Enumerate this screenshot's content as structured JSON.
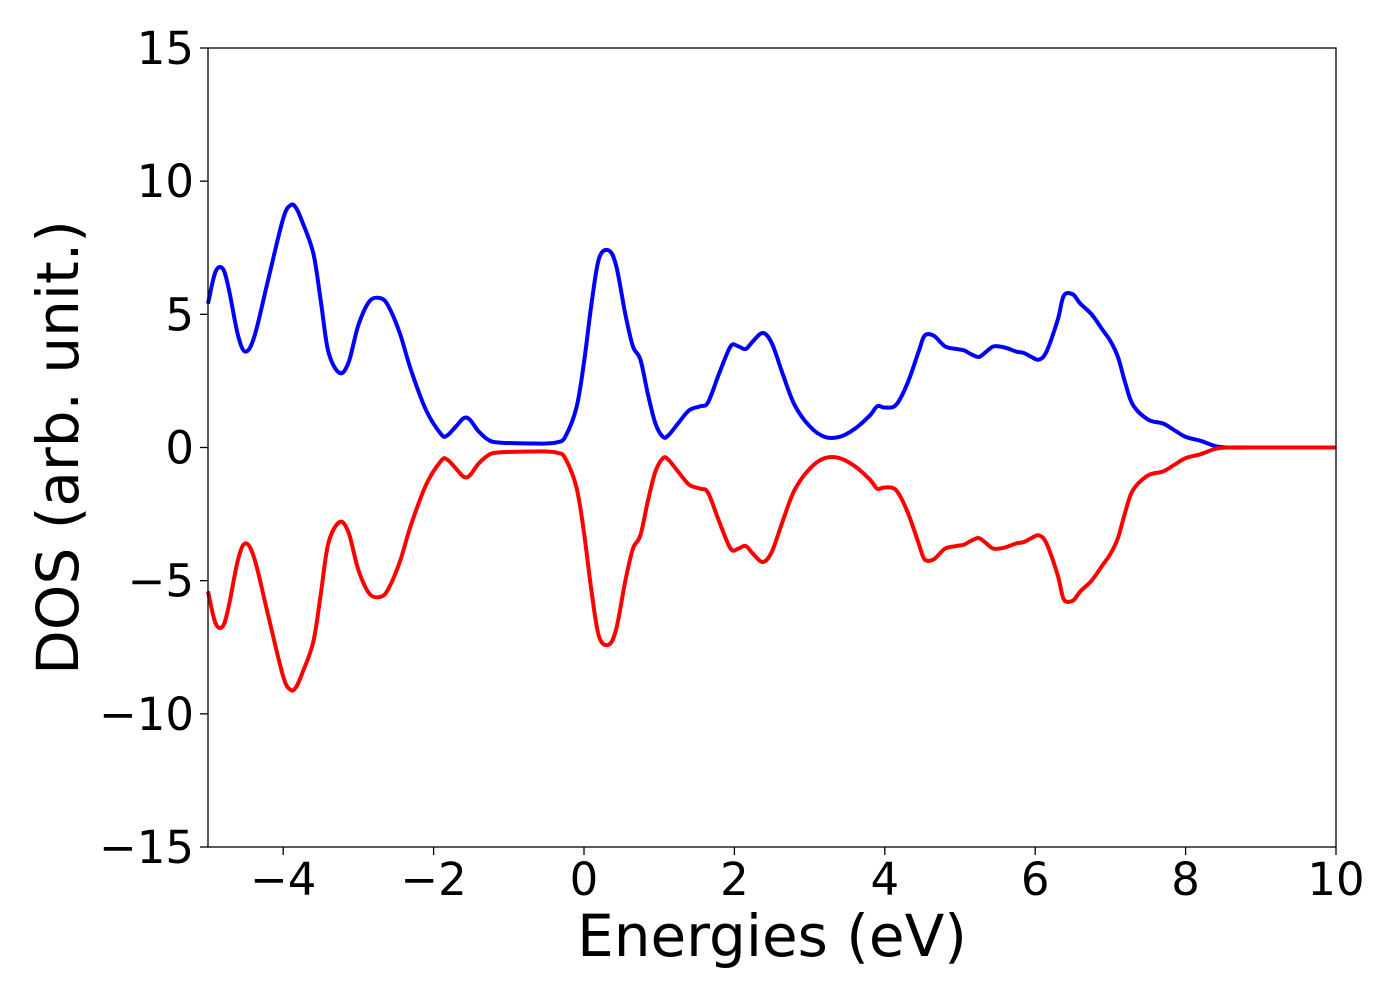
{
  "chart_data": {
    "type": "line",
    "title": "",
    "xlabel": "Energies (eV)",
    "ylabel": "DOS (arb. unit.)",
    "xlim": [
      -5,
      10
    ],
    "ylim": [
      -15,
      15
    ],
    "xticks": [
      -4,
      -2,
      0,
      2,
      4,
      6,
      8,
      10
    ],
    "xtick_labels": [
      "−4",
      "−2",
      "0",
      "2",
      "4",
      "6",
      "8",
      "10"
    ],
    "yticks": [
      15,
      10,
      5,
      0,
      -5,
      -10,
      -15
    ],
    "ytick_labels": [
      "15",
      "10",
      "5",
      "0",
      "−5",
      "−10",
      "−15"
    ],
    "grid": false,
    "series": [
      {
        "color": "#0000ff",
        "x": [
          -5.0,
          -4.9,
          -4.8,
          -4.72,
          -4.6,
          -4.5,
          -4.38,
          -4.2,
          -4.0,
          -3.9,
          -3.83,
          -3.75,
          -3.6,
          -3.5,
          -3.4,
          -3.25,
          -3.13,
          -3.0,
          -2.85,
          -2.7,
          -2.6,
          -2.45,
          -2.3,
          -2.1,
          -1.9,
          -1.82,
          -1.7,
          -1.6,
          -1.52,
          -1.4,
          -1.25,
          -1.1,
          -0.9,
          -0.7,
          -0.5,
          -0.35,
          -0.25,
          -0.1,
          0.0,
          0.1,
          0.2,
          0.33,
          0.43,
          0.55,
          0.65,
          0.75,
          0.85,
          0.95,
          1.05,
          1.12,
          1.25,
          1.4,
          1.55,
          1.65,
          1.8,
          1.95,
          2.05,
          2.15,
          2.25,
          2.38,
          2.5,
          2.65,
          2.8,
          3.0,
          3.2,
          3.4,
          3.6,
          3.8,
          3.9,
          4.0,
          4.15,
          4.3,
          4.45,
          4.53,
          4.65,
          4.8,
          4.95,
          5.05,
          5.15,
          5.25,
          5.35,
          5.45,
          5.6,
          5.75,
          5.85,
          5.95,
          6.05,
          6.15,
          6.3,
          6.38,
          6.5,
          6.6,
          6.75,
          6.9,
          7.0,
          7.1,
          7.2,
          7.3,
          7.5,
          7.7,
          7.85,
          8.0,
          8.2,
          8.4,
          8.6,
          9.0,
          9.5,
          10.0
        ],
        "y": [
          5.4,
          6.6,
          6.7,
          5.9,
          4.2,
          3.6,
          4.2,
          6.3,
          8.6,
          9.1,
          9.0,
          8.5,
          7.3,
          5.5,
          3.6,
          2.8,
          3.2,
          4.6,
          5.5,
          5.6,
          5.3,
          4.3,
          2.9,
          1.4,
          0.5,
          0.45,
          0.8,
          1.1,
          1.05,
          0.6,
          0.25,
          0.18,
          0.16,
          0.15,
          0.15,
          0.2,
          0.4,
          1.5,
          3.2,
          5.4,
          7.1,
          7.4,
          6.8,
          5.0,
          3.8,
          3.3,
          2.0,
          0.9,
          0.4,
          0.45,
          0.9,
          1.4,
          1.55,
          1.7,
          2.8,
          3.8,
          3.8,
          3.7,
          4.0,
          4.3,
          3.9,
          2.7,
          1.6,
          0.8,
          0.4,
          0.4,
          0.7,
          1.2,
          1.55,
          1.5,
          1.6,
          2.4,
          3.6,
          4.2,
          4.2,
          3.8,
          3.7,
          3.65,
          3.5,
          3.4,
          3.6,
          3.8,
          3.75,
          3.6,
          3.55,
          3.4,
          3.3,
          3.6,
          4.8,
          5.7,
          5.75,
          5.4,
          5.0,
          4.4,
          4.0,
          3.4,
          2.4,
          1.6,
          1.05,
          0.9,
          0.65,
          0.4,
          0.25,
          0.05,
          0.0,
          0.0,
          0.0,
          0.0
        ]
      },
      {
        "color": "#ff0000",
        "x": [
          -5.0,
          -4.9,
          -4.8,
          -4.72,
          -4.6,
          -4.5,
          -4.38,
          -4.2,
          -4.0,
          -3.9,
          -3.83,
          -3.75,
          -3.6,
          -3.5,
          -3.4,
          -3.25,
          -3.13,
          -3.0,
          -2.85,
          -2.7,
          -2.6,
          -2.45,
          -2.3,
          -2.1,
          -1.9,
          -1.82,
          -1.7,
          -1.6,
          -1.52,
          -1.4,
          -1.25,
          -1.1,
          -0.9,
          -0.7,
          -0.5,
          -0.35,
          -0.25,
          -0.1,
          0.0,
          0.1,
          0.2,
          0.33,
          0.43,
          0.55,
          0.65,
          0.75,
          0.85,
          0.95,
          1.05,
          1.12,
          1.25,
          1.4,
          1.55,
          1.65,
          1.8,
          1.95,
          2.05,
          2.15,
          2.25,
          2.38,
          2.5,
          2.65,
          2.8,
          3.0,
          3.2,
          3.4,
          3.6,
          3.8,
          3.9,
          4.0,
          4.15,
          4.3,
          4.45,
          4.53,
          4.65,
          4.8,
          4.95,
          5.05,
          5.15,
          5.25,
          5.35,
          5.45,
          5.6,
          5.75,
          5.85,
          5.95,
          6.05,
          6.15,
          6.3,
          6.38,
          6.5,
          6.6,
          6.75,
          6.9,
          7.0,
          7.1,
          7.2,
          7.3,
          7.5,
          7.7,
          7.85,
          8.0,
          8.2,
          8.4,
          8.6,
          9.0,
          9.5,
          10.0
        ],
        "y": [
          -5.4,
          -6.6,
          -6.7,
          -5.9,
          -4.2,
          -3.6,
          -4.2,
          -6.3,
          -8.6,
          -9.1,
          -9.0,
          -8.5,
          -7.3,
          -5.5,
          -3.6,
          -2.8,
          -3.2,
          -4.6,
          -5.5,
          -5.6,
          -5.3,
          -4.3,
          -2.9,
          -1.4,
          -0.5,
          -0.45,
          -0.8,
          -1.1,
          -1.05,
          -0.6,
          -0.25,
          -0.18,
          -0.16,
          -0.15,
          -0.15,
          -0.2,
          -0.4,
          -1.5,
          -3.2,
          -5.4,
          -7.1,
          -7.4,
          -6.8,
          -5.0,
          -3.8,
          -3.3,
          -2.0,
          -0.9,
          -0.4,
          -0.45,
          -0.9,
          -1.4,
          -1.55,
          -1.7,
          -2.8,
          -3.8,
          -3.8,
          -3.7,
          -4.0,
          -4.3,
          -3.9,
          -2.7,
          -1.6,
          -0.8,
          -0.4,
          -0.4,
          -0.7,
          -1.2,
          -1.55,
          -1.5,
          -1.6,
          -2.4,
          -3.6,
          -4.2,
          -4.2,
          -3.8,
          -3.7,
          -3.65,
          -3.5,
          -3.4,
          -3.6,
          -3.8,
          -3.75,
          -3.6,
          -3.55,
          -3.4,
          -3.3,
          -3.6,
          -4.8,
          -5.7,
          -5.75,
          -5.4,
          -5.0,
          -4.4,
          -4.0,
          -3.4,
          -2.4,
          -1.6,
          -1.05,
          -0.9,
          -0.65,
          -0.4,
          -0.25,
          -0.05,
          0.0,
          0.0,
          0.0,
          0.0
        ]
      }
    ]
  }
}
